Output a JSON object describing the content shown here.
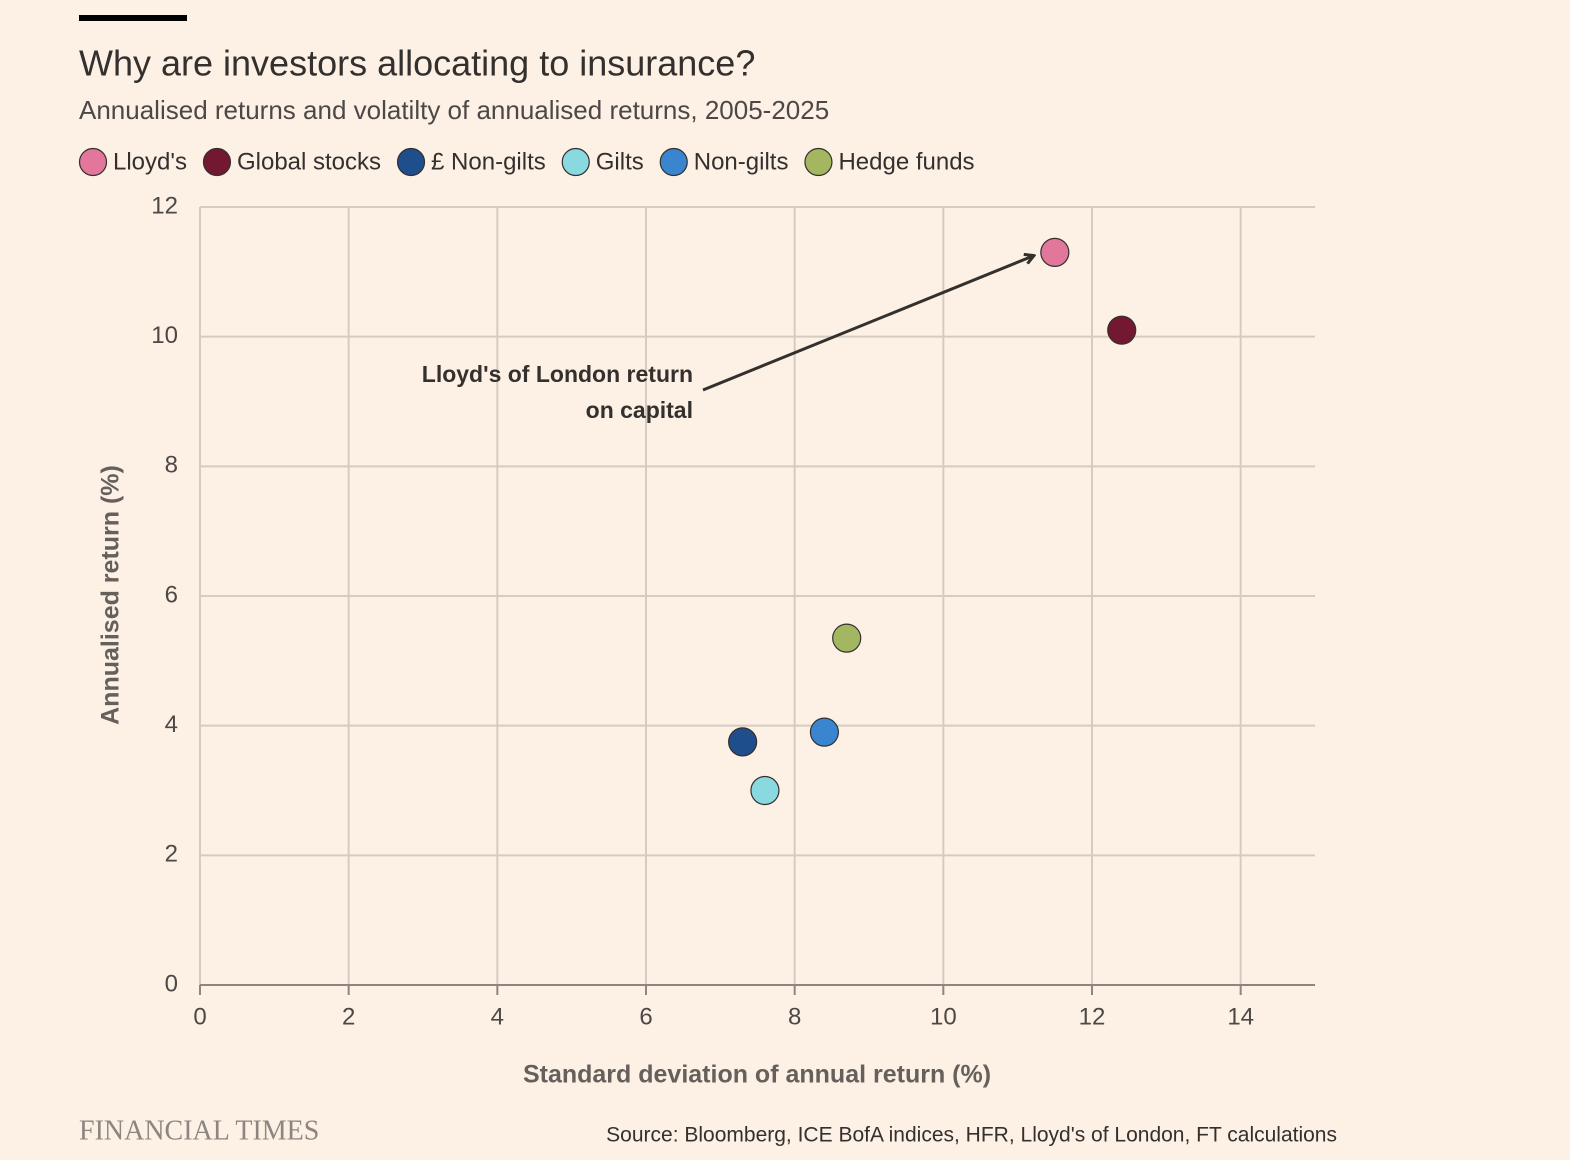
{
  "chart_data": {
    "type": "scatter",
    "title": "Why are investors allocating to insurance?",
    "subtitle": "Annualised returns and volatilty of annualised returns, 2005-2025",
    "x_label": "Standard deviation of annual return (%)",
    "y_label": "Annualised return (%)",
    "annotation": [
      "Lloyd's of London return",
      "on capital"
    ],
    "source": "Source: Bloomberg, ICE BofA indices, HFR, Lloyd's of London, FT calculations",
    "brand": "FINANCIAL TIMES",
    "xlim": [
      0,
      15
    ],
    "ylim": [
      0,
      12
    ],
    "xticks": [
      0,
      2,
      4,
      6,
      8,
      10,
      12,
      14
    ],
    "yticks": [
      0,
      2,
      4,
      6,
      8,
      10,
      12
    ],
    "grid": true,
    "series": [
      {
        "name": "Lloyd's",
        "color": "#e2769b",
        "x": [
          11.5
        ],
        "values": [
          11.3
        ]
      },
      {
        "name": "Global stocks",
        "color": "#741730",
        "x": [
          12.4
        ],
        "values": [
          10.1
        ]
      },
      {
        "name": "£ Non-gilts",
        "color": "#1f4e8c",
        "x": [
          7.3
        ],
        "values": [
          3.75
        ]
      },
      {
        "name": "Gilts",
        "color": "#89d9e0",
        "x": [
          7.6
        ],
        "values": [
          3.0
        ]
      },
      {
        "name": "Non-gilts",
        "color": "#3a85cf",
        "x": [
          8.4
        ],
        "values": [
          3.9
        ]
      },
      {
        "name": "Hedge funds",
        "color": "#a3b760",
        "x": [
          8.7
        ],
        "values": [
          5.35
        ]
      }
    ]
  }
}
